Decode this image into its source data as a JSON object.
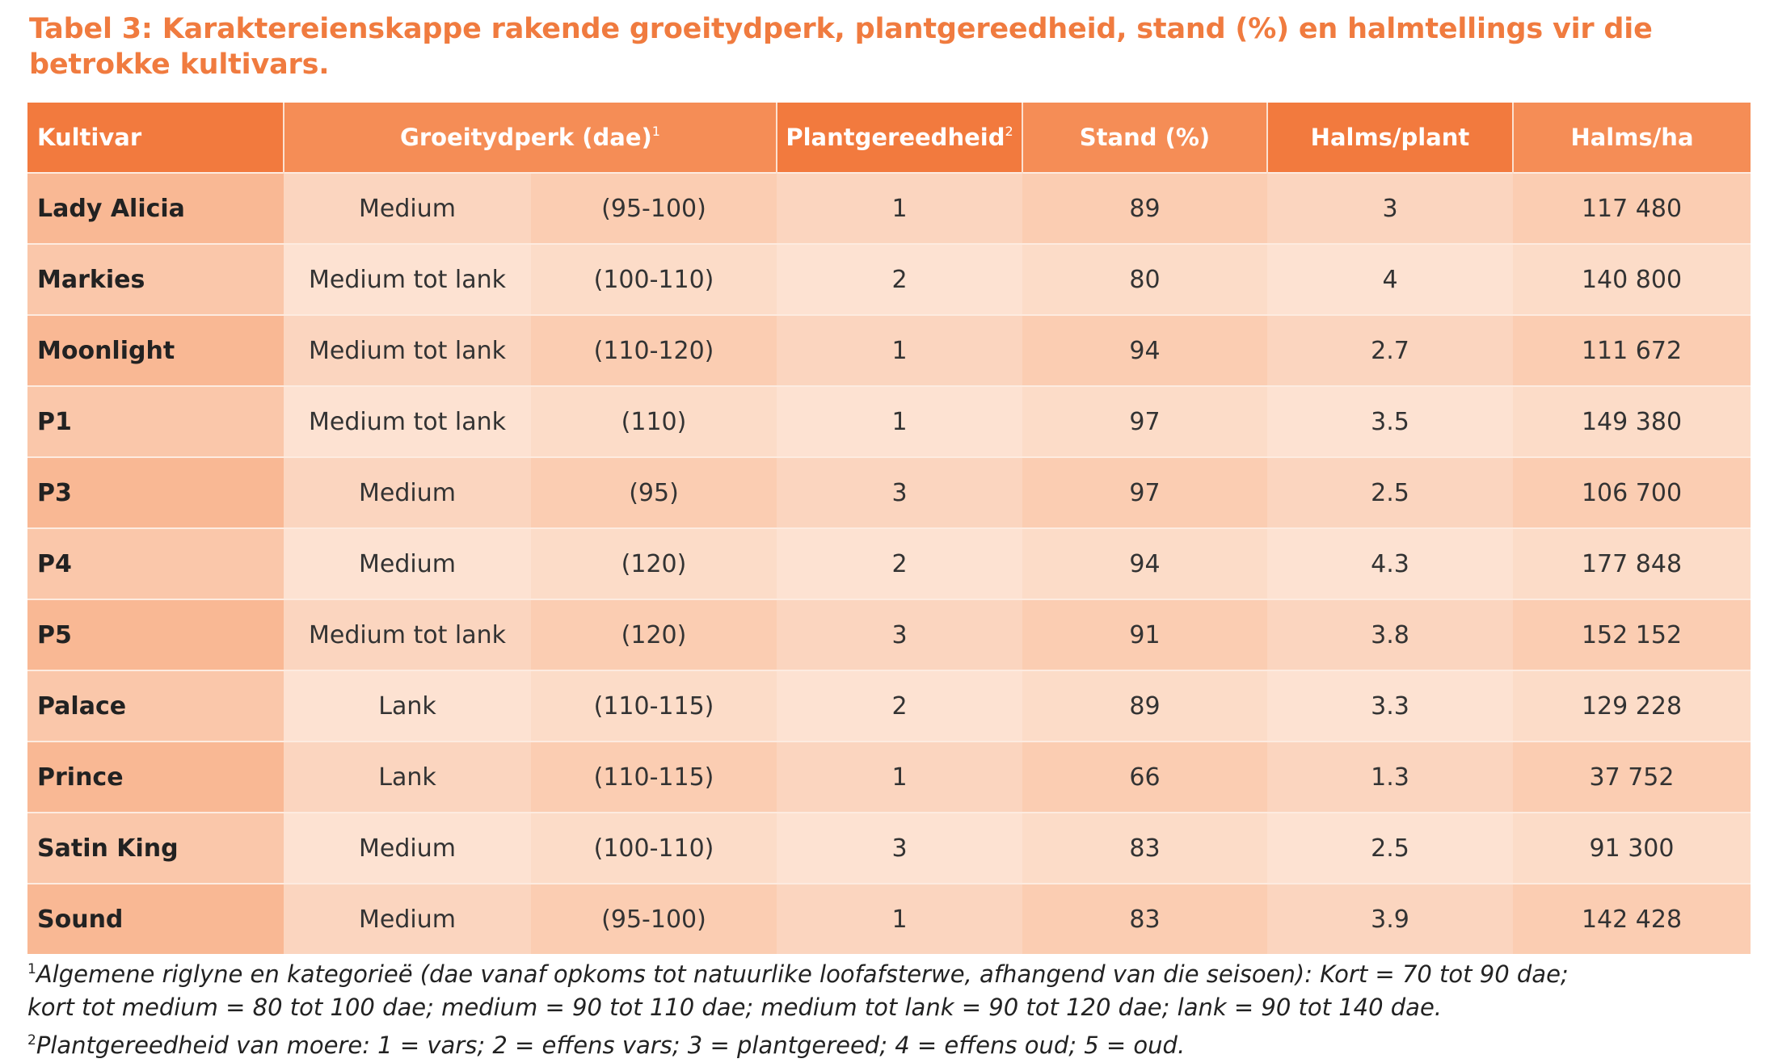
{
  "title": "Tabel 3: Karaktereienskappe rakende groeitydperk, plantgereedheid, stand (%) en halmtellings vir die betrokke kultivars.",
  "table": {
    "headers": {
      "kultivar": "Kultivar",
      "groeitydperk": "Groeitydperk (dae)",
      "groeitydperk_sup": "1",
      "plantgereedheid": "Plantgereedheid",
      "plantgereedheid_sup": "2",
      "stand": "Stand (%)",
      "halms_plant": "Halms/plant",
      "halms_ha": "Halms/ha"
    },
    "rows": [
      {
        "kultivar": "Lady Alicia",
        "kategorie": "Medium",
        "dae": "(95-100)",
        "plantgereedheid": "1",
        "stand": "89",
        "halms_plant": "3",
        "halms_ha": "117 480"
      },
      {
        "kultivar": "Markies",
        "kategorie": "Medium tot lank",
        "dae": "(100-110)",
        "plantgereedheid": "2",
        "stand": "80",
        "halms_plant": "4",
        "halms_ha": "140 800"
      },
      {
        "kultivar": "Moonlight",
        "kategorie": "Medium tot lank",
        "dae": "(110-120)",
        "plantgereedheid": "1",
        "stand": "94",
        "halms_plant": "2.7",
        "halms_ha": "111 672"
      },
      {
        "kultivar": "P1",
        "kategorie": "Medium tot lank",
        "dae": "(110)",
        "plantgereedheid": "1",
        "stand": "97",
        "halms_plant": "3.5",
        "halms_ha": "149 380"
      },
      {
        "kultivar": "P3",
        "kategorie": "Medium",
        "dae": "(95)",
        "plantgereedheid": "3",
        "stand": "97",
        "halms_plant": "2.5",
        "halms_ha": "106 700"
      },
      {
        "kultivar": "P4",
        "kategorie": "Medium",
        "dae": "(120)",
        "plantgereedheid": "2",
        "stand": "94",
        "halms_plant": "4.3",
        "halms_ha": "177 848"
      },
      {
        "kultivar": "P5",
        "kategorie": "Medium tot lank",
        "dae": "(120)",
        "plantgereedheid": "3",
        "stand": "91",
        "halms_plant": "3.8",
        "halms_ha": "152 152"
      },
      {
        "kultivar": "Palace",
        "kategorie": "Lank",
        "dae": "(110-115)",
        "plantgereedheid": "2",
        "stand": "89",
        "halms_plant": "3.3",
        "halms_ha": "129 228"
      },
      {
        "kultivar": "Prince",
        "kategorie": "Lank",
        "dae": "(110-115)",
        "plantgereedheid": "1",
        "stand": "66",
        "halms_plant": "1.3",
        "halms_ha": "37 752"
      },
      {
        "kultivar": "Satin King",
        "kategorie": "Medium",
        "dae": "(100-110)",
        "plantgereedheid": "3",
        "stand": "83",
        "halms_plant": "2.5",
        "halms_ha": "91 300"
      },
      {
        "kultivar": "Sound",
        "kategorie": "Medium",
        "dae": "(95-100)",
        "plantgereedheid": "1",
        "stand": "83",
        "halms_plant": "3.9",
        "halms_ha": "142 428"
      }
    ]
  },
  "footnotes": {
    "note1_sup": "1",
    "note1_line1": "Algemene riglyne en kategorieë (dae vanaf opkoms tot natuurlike loofafsterwe, afhangend van die seisoen): Kort = 70 tot 90 dae;",
    "note1_line2": "kort tot medium = 80 tot 100 dae; medium = 90 tot 110 dae; medium tot lank = 90 tot 120 dae; lank = 90 tot 140 dae.",
    "note2_sup": "2",
    "note2_line1": "Plantgereedheid van moere: 1 = vars; 2 = effens vars; 3 = plantgereed; 4 = effens oud; 5 = oud."
  },
  "colors": {
    "title": "#f07b3f",
    "header_dark": "#f27a3e",
    "header_light": "#f58d56"
  }
}
